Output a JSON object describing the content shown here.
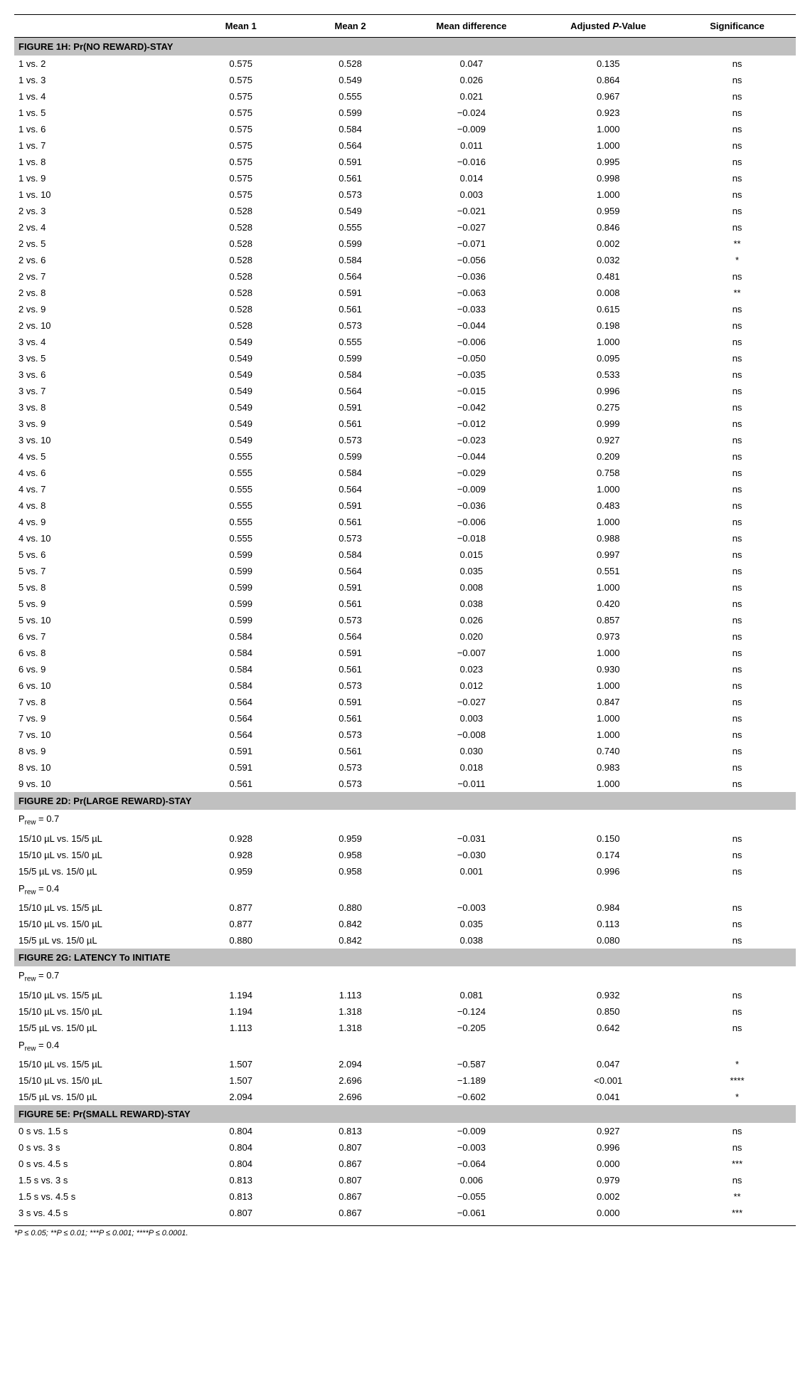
{
  "headers": [
    "",
    "Mean 1",
    "Mean 2",
    "Mean difference",
    "Adjusted P-Value",
    "Significance"
  ],
  "colors": {
    "section_bg": "#c0c0c0",
    "text": "#000000",
    "background": "#ffffff",
    "border": "#000000"
  },
  "fontsize_body": 13,
  "fontsize_footnote": 11,
  "sections": [
    {
      "title": "FIGURE 1H: Pr(NO REWARD)-STAY",
      "rows": [
        [
          "1 vs. 2",
          "0.575",
          "0.528",
          "0.047",
          "0.135",
          "ns"
        ],
        [
          "1 vs. 3",
          "0.575",
          "0.549",
          "0.026",
          "0.864",
          "ns"
        ],
        [
          "1 vs. 4",
          "0.575",
          "0.555",
          "0.021",
          "0.967",
          "ns"
        ],
        [
          "1 vs. 5",
          "0.575",
          "0.599",
          "−0.024",
          "0.923",
          "ns"
        ],
        [
          "1 vs. 6",
          "0.575",
          "0.584",
          "−0.009",
          "1.000",
          "ns"
        ],
        [
          "1 vs. 7",
          "0.575",
          "0.564",
          "0.011",
          "1.000",
          "ns"
        ],
        [
          "1 vs. 8",
          "0.575",
          "0.591",
          "−0.016",
          "0.995",
          "ns"
        ],
        [
          "1 vs. 9",
          "0.575",
          "0.561",
          "0.014",
          "0.998",
          "ns"
        ],
        [
          "1 vs. 10",
          "0.575",
          "0.573",
          "0.003",
          "1.000",
          "ns"
        ],
        [
          "2 vs. 3",
          "0.528",
          "0.549",
          "−0.021",
          "0.959",
          "ns"
        ],
        [
          "2 vs. 4",
          "0.528",
          "0.555",
          "−0.027",
          "0.846",
          "ns"
        ],
        [
          "2 vs. 5",
          "0.528",
          "0.599",
          "−0.071",
          "0.002",
          "**"
        ],
        [
          "2 vs. 6",
          "0.528",
          "0.584",
          "−0.056",
          "0.032",
          "*"
        ],
        [
          "2 vs. 7",
          "0.528",
          "0.564",
          "−0.036",
          "0.481",
          "ns"
        ],
        [
          "2 vs. 8",
          "0.528",
          "0.591",
          "−0.063",
          "0.008",
          "**"
        ],
        [
          "2 vs. 9",
          "0.528",
          "0.561",
          "−0.033",
          "0.615",
          "ns"
        ],
        [
          "2 vs. 10",
          "0.528",
          "0.573",
          "−0.044",
          "0.198",
          "ns"
        ],
        [
          "3 vs. 4",
          "0.549",
          "0.555",
          "−0.006",
          "1.000",
          "ns"
        ],
        [
          "3 vs. 5",
          "0.549",
          "0.599",
          "−0.050",
          "0.095",
          "ns"
        ],
        [
          "3 vs. 6",
          "0.549",
          "0.584",
          "−0.035",
          "0.533",
          "ns"
        ],
        [
          "3 vs. 7",
          "0.549",
          "0.564",
          "−0.015",
          "0.996",
          "ns"
        ],
        [
          "3 vs. 8",
          "0.549",
          "0.591",
          "−0.042",
          "0.275",
          "ns"
        ],
        [
          "3 vs. 9",
          "0.549",
          "0.561",
          "−0.012",
          "0.999",
          "ns"
        ],
        [
          "3 vs. 10",
          "0.549",
          "0.573",
          "−0.023",
          "0.927",
          "ns"
        ],
        [
          "4 vs. 5",
          "0.555",
          "0.599",
          "−0.044",
          "0.209",
          "ns"
        ],
        [
          "4 vs. 6",
          "0.555",
          "0.584",
          "−0.029",
          "0.758",
          "ns"
        ],
        [
          "4 vs. 7",
          "0.555",
          "0.564",
          "−0.009",
          "1.000",
          "ns"
        ],
        [
          "4 vs. 8",
          "0.555",
          "0.591",
          "−0.036",
          "0.483",
          "ns"
        ],
        [
          "4 vs. 9",
          "0.555",
          "0.561",
          "−0.006",
          "1.000",
          "ns"
        ],
        [
          "4 vs. 10",
          "0.555",
          "0.573",
          "−0.018",
          "0.988",
          "ns"
        ],
        [
          "5 vs. 6",
          "0.599",
          "0.584",
          "0.015",
          "0.997",
          "ns"
        ],
        [
          "5 vs. 7",
          "0.599",
          "0.564",
          "0.035",
          "0.551",
          "ns"
        ],
        [
          "5 vs. 8",
          "0.599",
          "0.591",
          "0.008",
          "1.000",
          "ns"
        ],
        [
          "5 vs. 9",
          "0.599",
          "0.561",
          "0.038",
          "0.420",
          "ns"
        ],
        [
          "5 vs. 10",
          "0.599",
          "0.573",
          "0.026",
          "0.857",
          "ns"
        ],
        [
          "6 vs. 7",
          "0.584",
          "0.564",
          "0.020",
          "0.973",
          "ns"
        ],
        [
          "6 vs. 8",
          "0.584",
          "0.591",
          "−0.007",
          "1.000",
          "ns"
        ],
        [
          "6 vs. 9",
          "0.584",
          "0.561",
          "0.023",
          "0.930",
          "ns"
        ],
        [
          "6 vs. 10",
          "0.584",
          "0.573",
          "0.012",
          "1.000",
          "ns"
        ],
        [
          "7 vs. 8",
          "0.564",
          "0.591",
          "−0.027",
          "0.847",
          "ns"
        ],
        [
          "7 vs. 9",
          "0.564",
          "0.561",
          "0.003",
          "1.000",
          "ns"
        ],
        [
          "7 vs. 10",
          "0.564",
          "0.573",
          "−0.008",
          "1.000",
          "ns"
        ],
        [
          "8 vs. 9",
          "0.591",
          "0.561",
          "0.030",
          "0.740",
          "ns"
        ],
        [
          "8 vs. 10",
          "0.591",
          "0.573",
          "0.018",
          "0.983",
          "ns"
        ],
        [
          "9 vs. 10",
          "0.561",
          "0.573",
          "−0.011",
          "1.000",
          "ns"
        ]
      ]
    },
    {
      "title": "FIGURE 2D: Pr(LARGE REWARD)-STAY",
      "subsections": [
        {
          "label": "Prew = 0.7",
          "rows": [
            [
              "15/10 µL vs. 15/5 µL",
              "0.928",
              "0.959",
              "−0.031",
              "0.150",
              "ns"
            ],
            [
              "15/10 µL vs. 15/0 µL",
              "0.928",
              "0.958",
              "−0.030",
              "0.174",
              "ns"
            ],
            [
              "15/5 µL vs. 15/0 µL",
              "0.959",
              "0.958",
              "0.001",
              "0.996",
              "ns"
            ]
          ]
        },
        {
          "label": "Prew = 0.4",
          "rows": [
            [
              "15/10 µL vs. 15/5 µL",
              "0.877",
              "0.880",
              "−0.003",
              "0.984",
              "ns"
            ],
            [
              "15/10 µL vs. 15/0 µL",
              "0.877",
              "0.842",
              "0.035",
              "0.113",
              "ns"
            ],
            [
              "15/5 µL vs. 15/0 µL",
              "0.880",
              "0.842",
              "0.038",
              "0.080",
              "ns"
            ]
          ]
        }
      ]
    },
    {
      "title": "FIGURE 2G: LATENCY To INITIATE",
      "subsections": [
        {
          "label": "Prew = 0.7",
          "rows": [
            [
              "15/10 µL vs. 15/5 µL",
              "1.194",
              "1.113",
              "0.081",
              "0.932",
              "ns"
            ],
            [
              "15/10 µL vs. 15/0 µL",
              "1.194",
              "1.318",
              "−0.124",
              "0.850",
              "ns"
            ],
            [
              "15/5 µL vs. 15/0 µL",
              "1.113",
              "1.318",
              "−0.205",
              "0.642",
              "ns"
            ]
          ]
        },
        {
          "label": "Prew = 0.4",
          "rows": [
            [
              "15/10 µL vs. 15/5 µL",
              "1.507",
              "2.094",
              "−0.587",
              "0.047",
              "*"
            ],
            [
              "15/10 µL vs. 15/0 µL",
              "1.507",
              "2.696",
              "−1.189",
              "<0.001",
              "****"
            ],
            [
              "15/5 µL vs. 15/0 µL",
              "2.094",
              "2.696",
              "−0.602",
              "0.041",
              "*"
            ]
          ]
        }
      ]
    },
    {
      "title": "FIGURE 5E: Pr(SMALL REWARD)-STAY",
      "rows": [
        [
          "0 s vs. 1.5 s",
          "0.804",
          "0.813",
          "−0.009",
          "0.927",
          "ns"
        ],
        [
          "0 s vs. 3 s",
          "0.804",
          "0.807",
          "−0.003",
          "0.996",
          "ns"
        ],
        [
          "0 s vs. 4.5 s",
          "0.804",
          "0.867",
          "−0.064",
          "0.000",
          "***"
        ],
        [
          "1.5 s vs. 3 s",
          "0.813",
          "0.807",
          "0.006",
          "0.979",
          "ns"
        ],
        [
          "1.5 s vs. 4.5 s",
          "0.813",
          "0.867",
          "−0.055",
          "0.002",
          "**"
        ],
        [
          "3 s vs. 4.5 s",
          "0.807",
          "0.867",
          "−0.061",
          "0.000",
          "***"
        ]
      ]
    }
  ],
  "footnote": "*P ≤ 0.05; **P ≤ 0.01; ***P ≤ 0.001; ****P ≤ 0.0001."
}
